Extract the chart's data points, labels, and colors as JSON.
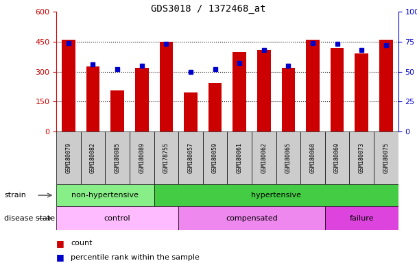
{
  "title": "GDS3018 / 1372468_at",
  "samples": [
    "GSM180079",
    "GSM180082",
    "GSM180085",
    "GSM180089",
    "GSM178755",
    "GSM180057",
    "GSM180059",
    "GSM180061",
    "GSM180062",
    "GSM180065",
    "GSM180068",
    "GSM180069",
    "GSM180073",
    "GSM180075"
  ],
  "counts": [
    460,
    325,
    205,
    320,
    450,
    195,
    245,
    400,
    410,
    320,
    460,
    420,
    390,
    460
  ],
  "percentile_ranks": [
    74,
    56,
    52,
    55,
    73,
    50,
    52,
    57,
    68,
    55,
    74,
    73,
    68,
    72
  ],
  "ylim_left": [
    0,
    600
  ],
  "ylim_right": [
    0,
    100
  ],
  "yticks_left": [
    0,
    150,
    300,
    450,
    600
  ],
  "yticks_right": [
    0,
    25,
    50,
    75,
    100
  ],
  "bar_color": "#cc0000",
  "dot_color": "#0000cc",
  "strain_groups": [
    {
      "label": "non-hypertensive",
      "start": 0,
      "end": 4,
      "color": "#88ee88"
    },
    {
      "label": "hypertensive",
      "start": 4,
      "end": 14,
      "color": "#44cc44"
    }
  ],
  "disease_groups": [
    {
      "label": "control",
      "start": 0,
      "end": 5,
      "color": "#ffbbff"
    },
    {
      "label": "compensated",
      "start": 5,
      "end": 11,
      "color": "#ee88ee"
    },
    {
      "label": "failure",
      "start": 11,
      "end": 14,
      "color": "#dd44dd"
    }
  ],
  "strain_label": "strain",
  "disease_label": "disease state",
  "legend_count": "count",
  "legend_percentile": "percentile rank within the sample",
  "bg_color": "#ffffff",
  "tick_area_color": "#cccccc",
  "grid_color": "#000000",
  "title_color": "#000000",
  "grid_yticks": [
    150,
    300,
    450
  ]
}
